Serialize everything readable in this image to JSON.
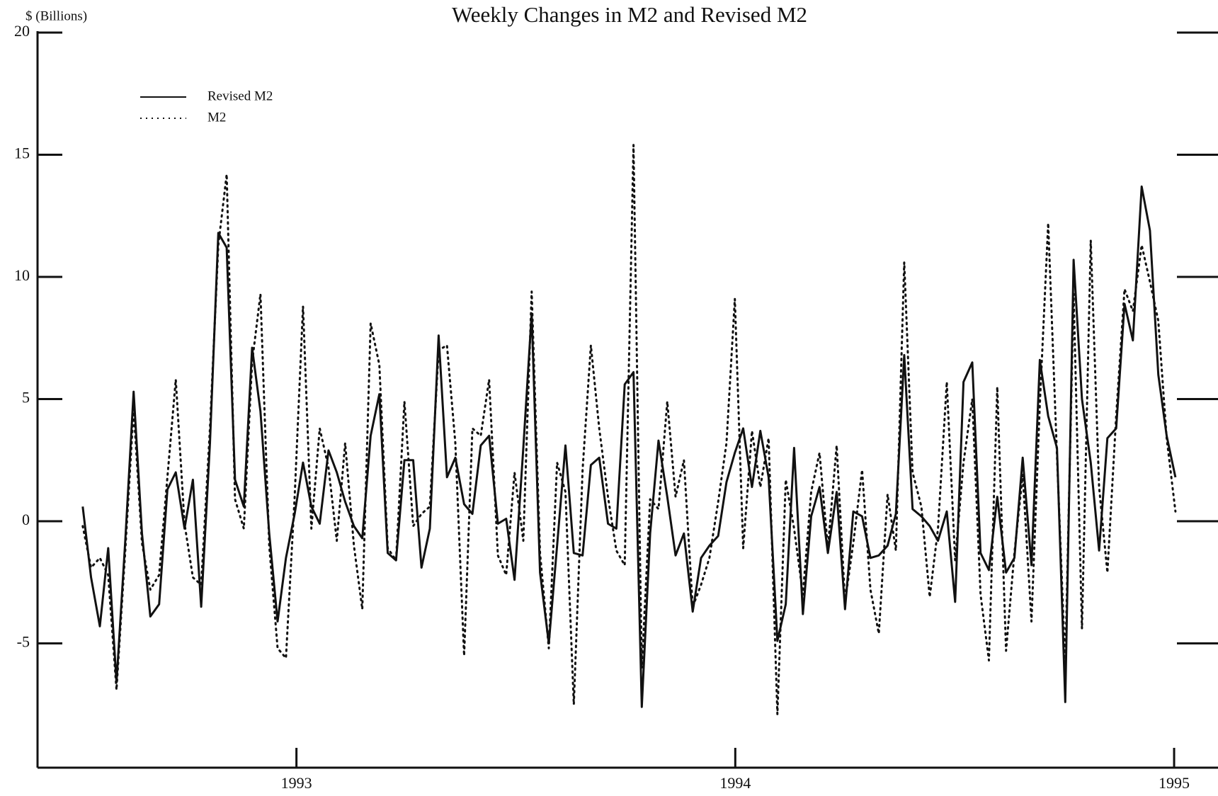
{
  "chart_data": {
    "type": "line",
    "title": "Weekly Changes in M2 and Revised M2",
    "y_label": "$ (Billions)",
    "x": [
      1992.513,
      1992.532,
      1992.552,
      1992.571,
      1992.59,
      1992.61,
      1992.629,
      1992.648,
      1992.667,
      1992.687,
      1992.706,
      1992.725,
      1992.745,
      1992.764,
      1992.783,
      1992.803,
      1992.822,
      1992.841,
      1992.86,
      1992.88,
      1992.899,
      1992.918,
      1992.938,
      1992.957,
      1992.976,
      1992.996,
      1993.015,
      1993.034,
      1993.053,
      1993.073,
      1993.092,
      1993.111,
      1993.131,
      1993.15,
      1993.169,
      1993.189,
      1993.208,
      1993.227,
      1993.246,
      1993.266,
      1993.285,
      1993.304,
      1993.324,
      1993.343,
      1993.362,
      1993.382,
      1993.401,
      1993.42,
      1993.439,
      1993.459,
      1993.478,
      1993.497,
      1993.517,
      1993.536,
      1993.555,
      1993.575,
      1993.594,
      1993.613,
      1993.632,
      1993.652,
      1993.671,
      1993.69,
      1993.71,
      1993.729,
      1993.748,
      1993.768,
      1993.787,
      1993.806,
      1993.825,
      1993.845,
      1993.864,
      1993.883,
      1993.903,
      1993.922,
      1993.941,
      1993.961,
      1993.98,
      1993.999,
      1994.018,
      1994.038,
      1994.057,
      1994.076,
      1994.096,
      1994.115,
      1994.134,
      1994.154,
      1994.173,
      1994.192,
      1994.211,
      1994.231,
      1994.25,
      1994.269,
      1994.289,
      1994.308,
      1994.327,
      1994.347,
      1994.366,
      1994.385,
      1994.404,
      1994.424,
      1994.443,
      1994.462,
      1994.482,
      1994.501,
      1994.52,
      1994.54,
      1994.559,
      1994.578,
      1994.597,
      1994.617,
      1994.636,
      1994.655,
      1994.675,
      1994.694,
      1994.713,
      1994.733,
      1994.752,
      1994.771,
      1994.79,
      1994.81,
      1994.829,
      1994.848,
      1994.868,
      1994.887,
      1994.906,
      1994.926,
      1994.945,
      1994.964,
      1994.983,
      1995.003
    ],
    "series": [
      {
        "name": "Revised M2",
        "color": "#111111",
        "style": "solid",
        "values": [
          0.6,
          -2.3,
          -4.3,
          -1.1,
          -6.6,
          -0.8,
          5.3,
          -0.5,
          -3.9,
          -3.4,
          1.3,
          2.0,
          -0.3,
          1.7,
          -3.5,
          3.2,
          11.8,
          11.2,
          1.7,
          0.6,
          7.1,
          4.5,
          -0.5,
          -4.1,
          -1.5,
          0.3,
          2.4,
          0.6,
          -0.1,
          2.9,
          2.0,
          0.8,
          -0.2,
          -0.7,
          3.5,
          5.2,
          -1.3,
          -1.6,
          2.5,
          2.5,
          -1.9,
          -0.3,
          7.6,
          1.8,
          2.6,
          0.7,
          0.3,
          3.1,
          3.5,
          -0.1,
          0.1,
          -2.4,
          3.0,
          8.5,
          -2.1,
          -5.0,
          -1.0,
          3.1,
          -1.3,
          -1.4,
          2.3,
          2.6,
          -0.1,
          -0.3,
          5.6,
          6.1,
          -7.6,
          -0.5,
          3.3,
          1.0,
          -1.4,
          -0.5,
          -3.7,
          -1.5,
          -1.0,
          -0.6,
          1.6,
          2.8,
          3.8,
          1.4,
          3.7,
          1.8,
          -4.9,
          -3.4,
          3.0,
          -3.8,
          0.2,
          1.4,
          -1.3,
          1.2,
          -3.6,
          0.4,
          0.2,
          -1.5,
          -1.4,
          -1.0,
          0.3,
          6.8,
          0.5,
          0.2,
          -0.2,
          -0.8,
          0.4,
          -3.3,
          5.7,
          6.5,
          -1.3,
          -2.0,
          1.0,
          -2.1,
          -1.5,
          2.6,
          -1.8,
          6.6,
          4.3,
          3.0,
          -7.4,
          10.7,
          5.0,
          2.4,
          -1.2,
          3.4,
          3.8,
          8.9,
          7.4,
          13.7,
          11.9,
          6.0,
          3.5,
          1.8
        ]
      },
      {
        "name": "M2",
        "color": "#111111",
        "style": "dotted",
        "values": [
          -0.2,
          -1.9,
          -1.5,
          -2.2,
          -6.9,
          -1.2,
          4.6,
          -0.9,
          -2.8,
          -2.2,
          1.8,
          5.8,
          -0.1,
          -2.3,
          -2.6,
          3.8,
          11.3,
          14.2,
          0.9,
          -0.3,
          6.5,
          9.3,
          -1.0,
          -5.2,
          -5.6,
          1.0,
          8.8,
          -0.3,
          3.8,
          2.2,
          -0.8,
          3.2,
          -1.0,
          -3.6,
          8.1,
          6.4,
          -1.1,
          -1.6,
          4.9,
          -0.2,
          0.3,
          0.6,
          7.0,
          7.2,
          3.2,
          -5.5,
          3.8,
          3.5,
          5.8,
          -1.4,
          -2.2,
          2.0,
          -0.8,
          9.4,
          -1.3,
          -5.2,
          2.4,
          1.2,
          -7.5,
          2.1,
          7.2,
          3.8,
          1.0,
          -1.2,
          -1.8,
          15.4,
          -6.0,
          0.9,
          0.5,
          4.9,
          1.0,
          2.5,
          -3.5,
          -2.6,
          -1.5,
          0.8,
          3.2,
          9.1,
          -1.1,
          3.7,
          1.4,
          3.4,
          -7.9,
          1.7,
          -0.3,
          -3.0,
          1.2,
          2.8,
          -1.1,
          3.1,
          -3.3,
          -0.9,
          2.1,
          -2.8,
          -4.6,
          1.1,
          -1.2,
          10.6,
          2.0,
          0.6,
          -3.1,
          -0.3,
          5.7,
          -1.6,
          2.4,
          5.0,
          -3.0,
          -5.7,
          5.5,
          -5.3,
          -1.3,
          1.9,
          -4.1,
          4.8,
          12.2,
          2.7,
          -5.9,
          9.3,
          -4.4,
          11.5,
          1.4,
          -2.1,
          4.3,
          9.5,
          8.6,
          11.3,
          9.8,
          8.2,
          3.4,
          0.4
        ]
      }
    ],
    "xlim": [
      1992.41,
      1995.1
    ],
    "xticks": [
      1993,
      1994,
      1995
    ],
    "ylim": [
      -10,
      20
    ],
    "yticks": [
      -5,
      0,
      5,
      10,
      15,
      20
    ],
    "grid": false,
    "legend": "upper left"
  }
}
